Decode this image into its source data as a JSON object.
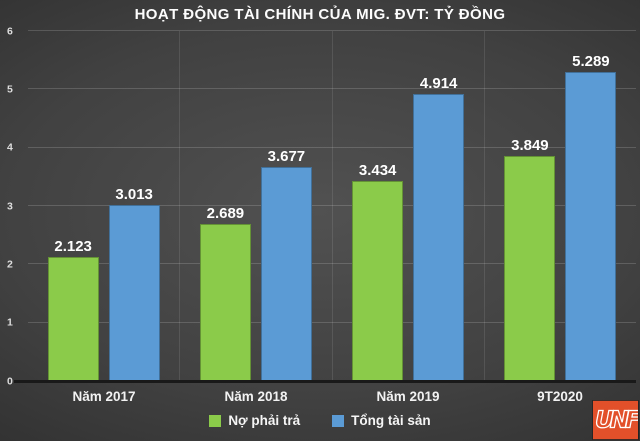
{
  "chart_data": {
    "type": "bar",
    "title": "HOẠT ĐỘNG TÀI CHÍNH CỦA MIG. ĐVT: TỶ ĐỒNG",
    "categories": [
      "Năm 2017",
      "Năm 2018",
      "Năm 2019",
      "9T2020"
    ],
    "series": [
      {
        "name": "Nợ phải trả",
        "color": "#8BCB4A",
        "values": [
          2.123,
          2.689,
          3.434,
          3.849
        ],
        "labels": [
          "2.123",
          "2.689",
          "3.434",
          "3.849"
        ]
      },
      {
        "name": "Tổng tài sản",
        "color": "#5B9BD5",
        "values": [
          3.013,
          3.677,
          4.914,
          5.289
        ],
        "labels": [
          "3.013",
          "3.677",
          "4.914",
          "5.289"
        ]
      }
    ],
    "ylim": [
      0,
      6
    ],
    "yticks": [
      0,
      1,
      2,
      3,
      4,
      5,
      6
    ],
    "grid": true,
    "legend_position": "bottom"
  },
  "logo": {
    "text": "UNF",
    "background": "#E2502A",
    "letter_color": "#FFFFFF"
  }
}
